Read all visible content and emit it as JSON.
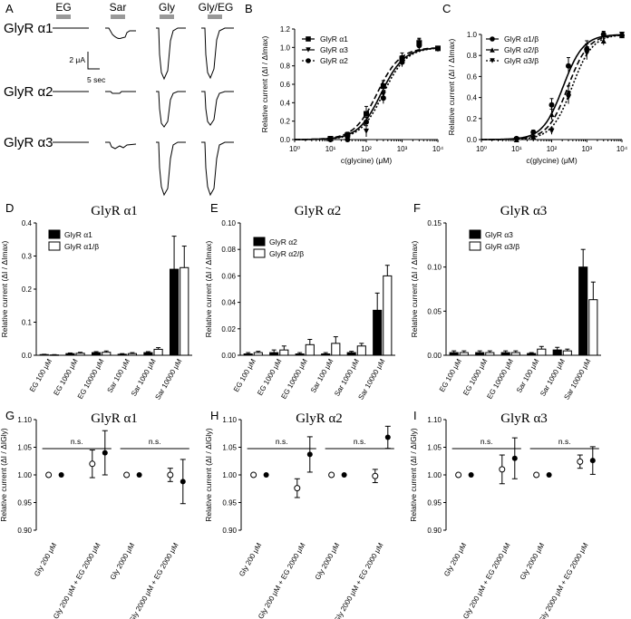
{
  "panel_letters": [
    "A",
    "B",
    "C",
    "D",
    "E",
    "F",
    "G",
    "H",
    "I"
  ],
  "traces": {
    "columns": [
      "EG",
      "Sar",
      "Gly",
      "Gly/EG"
    ],
    "rows": [
      "GlyR α1",
      "GlyR α2",
      "GlyR α3"
    ],
    "scale_current": "2 μA",
    "scale_time": "5 sec"
  },
  "colors": {
    "ink": "#000000",
    "stim_bar": "#999999",
    "open_marker": "#ffffff"
  },
  "chart_data": [
    {
      "panel": "B",
      "type": "scatter",
      "xscale": "log",
      "xlim": [
        1,
        10000
      ],
      "ylim": [
        0,
        1.2
      ],
      "xticks": [
        "10⁰",
        "10¹",
        "10²",
        "10³",
        "10⁴"
      ],
      "yticks": [
        "0.0",
        "0.2",
        "0.4",
        "0.6",
        "0.8",
        "1.0",
        "1.2"
      ],
      "xlabel": "c(glycine) (μM)",
      "ylabel": "Relative current (ΔI / ΔImax)",
      "legend_position": "top-left",
      "series": [
        {
          "name": "GlyR α1",
          "marker": "square",
          "curve": "dashed",
          "ec50": 200,
          "hill": 1.35,
          "x": [
            10,
            30,
            100,
            300,
            1000,
            3000,
            10000
          ],
          "y": [
            0.01,
            0.05,
            0.28,
            0.58,
            0.88,
            1.05,
            0.99
          ],
          "err": [
            0.01,
            0.03,
            0.08,
            0.06,
            0.06,
            0.05,
            0.02
          ]
        },
        {
          "name": "GlyR α3",
          "marker": "triangle-down",
          "curve": "solid",
          "ec50": 260,
          "hill": 1.35,
          "x": [
            10,
            30,
            100,
            300,
            1000,
            3000,
            10000
          ],
          "y": [
            0.0,
            0.02,
            0.09,
            0.49,
            0.86,
            1.04,
            0.98
          ],
          "err": [
            0.01,
            0.02,
            0.06,
            0.07,
            0.05,
            0.05,
            0.02
          ]
        },
        {
          "name": "GlyR α2",
          "marker": "circle",
          "curve": "dotted",
          "ec50": 300,
          "hill": 1.35,
          "x": [
            10,
            30,
            100,
            300,
            1000,
            3000,
            10000
          ],
          "y": [
            0.0,
            0.0,
            0.19,
            0.45,
            0.84,
            1.02,
            0.99
          ],
          "err": [
            0.01,
            0.01,
            0.05,
            0.06,
            0.05,
            0.04,
            0.02
          ]
        }
      ]
    },
    {
      "panel": "C",
      "type": "scatter",
      "xscale": "log",
      "xlim": [
        1,
        10000
      ],
      "ylim": [
        0,
        1.0
      ],
      "xticks": [
        "10⁰",
        "10¹",
        "10²",
        "10³",
        "10⁴"
      ],
      "yticks": [
        "0.0",
        "0.2",
        "0.4",
        "0.6",
        "0.8",
        "1.0"
      ],
      "xlabel": "c(glycine) (μM)",
      "ylabel": "Relative current (ΔI / ΔImax)",
      "legend_position": "top-left",
      "series": [
        {
          "name": "GlyR α1/β",
          "marker": "circle",
          "curve": "solid",
          "ec50": 210,
          "hill": 1.5,
          "x": [
            10,
            30,
            100,
            300,
            1000,
            3000,
            10000
          ],
          "y": [
            0.01,
            0.07,
            0.33,
            0.7,
            0.86,
            1.0,
            0.99
          ],
          "err": [
            0.01,
            0.02,
            0.06,
            0.08,
            0.05,
            0.03,
            0.02
          ]
        },
        {
          "name": "GlyR α2/β",
          "marker": "triangle-up",
          "curve": "dashed",
          "ec50": 290,
          "hill": 1.5,
          "x": [
            10,
            30,
            100,
            300,
            1000,
            3000,
            10000
          ],
          "y": [
            0.0,
            0.03,
            0.24,
            0.45,
            0.88,
            0.94,
            0.99
          ],
          "err": [
            0.01,
            0.02,
            0.05,
            0.06,
            0.06,
            0.04,
            0.02
          ]
        },
        {
          "name": "GlyR α3/β",
          "marker": "triangle-down",
          "curve": "dotted",
          "ec50": 380,
          "hill": 1.5,
          "x": [
            10,
            30,
            100,
            300,
            1000,
            3000,
            10000
          ],
          "y": [
            0.0,
            0.01,
            0.08,
            0.4,
            0.82,
            0.98,
            1.0
          ],
          "err": [
            0.01,
            0.01,
            0.03,
            0.06,
            0.06,
            0.04,
            0.02
          ]
        }
      ]
    },
    {
      "panel": "D",
      "type": "bar",
      "title": "GlyR α1",
      "ylim": [
        0,
        0.4
      ],
      "ylabel": "Relative current (ΔI / ΔImax)",
      "yticks": [
        "0.0",
        "0.1",
        "0.2",
        "0.3",
        "0.4"
      ],
      "categories": [
        "EG 100 μM",
        "EG 1000 μM",
        "EG 10000 μM",
        "Sar 100 μM",
        "Sar 1000 μM",
        "Sar 10000 μM"
      ],
      "legend_position": "top-left",
      "series": [
        {
          "name": "GlyR α1",
          "fill": "black",
          "values": [
            0.002,
            0.005,
            0.008,
            0.003,
            0.008,
            0.26
          ],
          "err": [
            0.001,
            0.002,
            0.003,
            0.002,
            0.003,
            0.1
          ]
        },
        {
          "name": "GlyR α1/β",
          "fill": "white",
          "values": [
            0.001,
            0.006,
            0.009,
            0.005,
            0.018,
            0.265
          ],
          "err": [
            0.001,
            0.003,
            0.004,
            0.003,
            0.005,
            0.065
          ]
        }
      ]
    },
    {
      "panel": "E",
      "type": "bar",
      "title": "GlyR α2",
      "ylim": [
        0,
        0.1
      ],
      "ylabel": "Relative current (ΔI / ΔImax)",
      "yticks": [
        "0.00",
        "0.02",
        "0.04",
        "0.06",
        "0.08",
        "0.10"
      ],
      "categories": [
        "EG 100 μM",
        "EG 1000 μM",
        "EG 10000 μM",
        "Sar 100 μM",
        "Sar 1000 μM",
        "Sar 10000 μM"
      ],
      "legend_position": "top-left",
      "series": [
        {
          "name": "GlyR α2",
          "fill": "black",
          "values": [
            0.001,
            0.002,
            0.001,
            0.001,
            0.002,
            0.034
          ],
          "err": [
            0.001,
            0.002,
            0.001,
            0.001,
            0.001,
            0.013
          ]
        },
        {
          "name": "GlyR α2/β",
          "fill": "white",
          "values": [
            0.002,
            0.004,
            0.008,
            0.009,
            0.007,
            0.06
          ],
          "err": [
            0.001,
            0.003,
            0.004,
            0.005,
            0.002,
            0.008
          ]
        }
      ]
    },
    {
      "panel": "F",
      "type": "bar",
      "title": "GlyR α3",
      "ylim": [
        0,
        0.15
      ],
      "ylabel": "Relative current (ΔI / ΔImax)",
      "yticks": [
        "0.00",
        "0.05",
        "0.10",
        "0.15"
      ],
      "categories": [
        "EG 100 μM",
        "EG 1000 μM",
        "EG 10000 μM",
        "Sar 100 μM",
        "Sar 1000 μM",
        "Sar 10000 μM"
      ],
      "legend_position": "top-right",
      "series": [
        {
          "name": "GlyR α3",
          "fill": "black",
          "values": [
            0.003,
            0.003,
            0.003,
            0.002,
            0.006,
            0.1
          ],
          "err": [
            0.002,
            0.002,
            0.002,
            0.001,
            0.003,
            0.02
          ]
        },
        {
          "name": "GlyR α3/β",
          "fill": "white",
          "values": [
            0.003,
            0.003,
            0.003,
            0.007,
            0.005,
            0.063
          ],
          "err": [
            0.002,
            0.002,
            0.002,
            0.003,
            0.002,
            0.02
          ]
        }
      ]
    },
    {
      "panel": "G",
      "type": "scatter",
      "title": "GlyR α1",
      "ylim": [
        0.9,
        1.1
      ],
      "ylabel": "Relative current (ΔI / ΔIGly)",
      "yticks": [
        "0.90",
        "0.95",
        "1.00",
        "1.05",
        "1.10"
      ],
      "categories": [
        "Gly 200 μM",
        "Gly 200 μM + EG 2000 μM",
        "Gly 2000 μM",
        "Gly 2000 μM + EG 2000 μM"
      ],
      "annotations": [
        "n.s.",
        "n.s."
      ],
      "series": [
        {
          "name": "open",
          "marker": "open-circle",
          "values": [
            1.0,
            1.02,
            1.0,
            1.0
          ],
          "err": [
            0,
            0.025,
            0,
            0.012
          ]
        },
        {
          "name": "filled",
          "marker": "filled-circle",
          "values": [
            1.0,
            1.04,
            1.0,
            0.988
          ],
          "err": [
            0,
            0.04,
            0,
            0.04
          ]
        }
      ]
    },
    {
      "panel": "H",
      "type": "scatter",
      "title": "GlyR α2",
      "ylim": [
        0.9,
        1.1
      ],
      "ylabel": "Relative current (ΔI / ΔIGly)",
      "yticks": [
        "0.90",
        "0.95",
        "1.00",
        "1.05",
        "1.10"
      ],
      "categories": [
        "Gly 200 μM",
        "Gly 200 μM + EG 2000 μM",
        "Gly 2000 μM",
        "Gly 2000 μM + EG 2000 μM"
      ],
      "annotations": [
        "n.s.",
        "n.s."
      ],
      "series": [
        {
          "name": "open",
          "marker": "open-circle",
          "values": [
            1.0,
            0.976,
            1.0,
            0.998
          ],
          "err": [
            0,
            0.017,
            0,
            0.012
          ]
        },
        {
          "name": "filled",
          "marker": "filled-circle",
          "values": [
            1.0,
            1.037,
            1.0,
            1.068
          ],
          "err": [
            0,
            0.032,
            0,
            0.02
          ]
        }
      ]
    },
    {
      "panel": "I",
      "type": "scatter",
      "title": "GlyR α3",
      "ylim": [
        0.9,
        1.1
      ],
      "ylabel": "Relative current (ΔI / ΔIGly)",
      "yticks": [
        "0.90",
        "0.95",
        "1.00",
        "1.05",
        "1.10"
      ],
      "categories": [
        "Gly 200 μM",
        "Gly 200 μM + EG 2000 μM",
        "Gly 2000 μM",
        "Gly 2000 μM + EG 2000 μM"
      ],
      "annotations": [
        "n.s.",
        "n.s."
      ],
      "series": [
        {
          "name": "open",
          "marker": "open-circle",
          "values": [
            1.0,
            1.01,
            1.0,
            1.024
          ],
          "err": [
            0,
            0.026,
            0,
            0.012
          ]
        },
        {
          "name": "filled",
          "marker": "filled-circle",
          "values": [
            1.0,
            1.03,
            1.0,
            1.026
          ],
          "err": [
            0,
            0.037,
            0,
            0.025
          ]
        }
      ]
    }
  ]
}
